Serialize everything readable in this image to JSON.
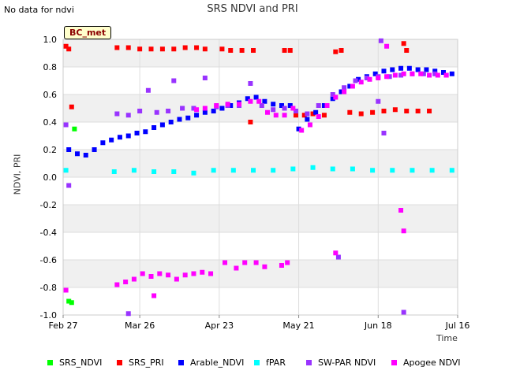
{
  "note": "No data for ndvi",
  "site_badge": "BC_met",
  "chart_data": {
    "type": "scatter",
    "title": "SRS NDVI and PRI",
    "xlabel": "Time",
    "ylabel": "NDVI, PRI",
    "ylim": [
      -1.0,
      1.0
    ],
    "y_ticks": [
      "-1.0",
      "-0.8",
      "-0.6",
      "-0.4",
      "-0.2",
      "0.0",
      "0.2",
      "0.4",
      "0.6",
      "0.8",
      "1.0"
    ],
    "x_range": [
      "2023-02-27",
      "2023-07-16"
    ],
    "x_ticks": [
      {
        "label": "Feb 27",
        "date": "2023-02-27"
      },
      {
        "label": "Mar 26",
        "date": "2023-03-26"
      },
      {
        "label": "Apr 23",
        "date": "2023-04-23"
      },
      {
        "label": "May 21",
        "date": "2023-05-21"
      },
      {
        "label": "Jun 18",
        "date": "2023-06-18"
      },
      {
        "label": "Jul 16",
        "date": "2023-07-16"
      }
    ],
    "grid": "horizontal bands",
    "legend_position": "bottom",
    "series": [
      {
        "name": "SRS_NDVI",
        "color": "#00ff00",
        "points": [
          [
            "2023-03-01",
            -0.9
          ],
          [
            "2023-03-02",
            -0.91
          ],
          [
            "2023-03-03",
            0.35
          ]
        ]
      },
      {
        "name": "SRS_PRI",
        "color": "#ff0000",
        "points": [
          [
            "2023-02-28",
            0.95
          ],
          [
            "2023-03-01",
            0.93
          ],
          [
            "2023-03-02",
            0.51
          ],
          [
            "2023-03-18",
            0.94
          ],
          [
            "2023-03-22",
            0.94
          ],
          [
            "2023-03-26",
            0.93
          ],
          [
            "2023-03-30",
            0.93
          ],
          [
            "2023-04-03",
            0.93
          ],
          [
            "2023-04-07",
            0.93
          ],
          [
            "2023-04-11",
            0.94
          ],
          [
            "2023-04-15",
            0.94
          ],
          [
            "2023-04-18",
            0.93
          ],
          [
            "2023-04-24",
            0.93
          ],
          [
            "2023-04-27",
            0.92
          ],
          [
            "2023-05-01",
            0.92
          ],
          [
            "2023-05-05",
            0.92
          ],
          [
            "2023-05-16",
            0.92
          ],
          [
            "2023-05-18",
            0.92
          ],
          [
            "2023-05-04",
            0.4
          ],
          [
            "2023-05-20",
            0.45
          ],
          [
            "2023-05-23",
            0.45
          ],
          [
            "2023-05-26",
            0.46
          ],
          [
            "2023-05-30",
            0.45
          ],
          [
            "2023-06-03",
            0.91
          ],
          [
            "2023-06-05",
            0.92
          ],
          [
            "2023-06-08",
            0.47
          ],
          [
            "2023-06-12",
            0.46
          ],
          [
            "2023-06-16",
            0.47
          ],
          [
            "2023-06-20",
            0.48
          ],
          [
            "2023-06-24",
            0.49
          ],
          [
            "2023-06-28",
            0.48
          ],
          [
            "2023-07-02",
            0.48
          ],
          [
            "2023-07-06",
            0.48
          ],
          [
            "2023-06-27",
            0.97
          ],
          [
            "2023-06-28",
            0.92
          ]
        ]
      },
      {
        "name": "Arable_NDVI",
        "color": "#0000ff",
        "points": [
          [
            "2023-03-01",
            0.2
          ],
          [
            "2023-03-04",
            0.17
          ],
          [
            "2023-03-07",
            0.16
          ],
          [
            "2023-03-10",
            0.2
          ],
          [
            "2023-03-13",
            0.25
          ],
          [
            "2023-03-16",
            0.27
          ],
          [
            "2023-03-19",
            0.29
          ],
          [
            "2023-03-22",
            0.3
          ],
          [
            "2023-03-25",
            0.32
          ],
          [
            "2023-03-28",
            0.33
          ],
          [
            "2023-03-31",
            0.36
          ],
          [
            "2023-04-03",
            0.38
          ],
          [
            "2023-04-06",
            0.4
          ],
          [
            "2023-04-09",
            0.42
          ],
          [
            "2023-04-12",
            0.43
          ],
          [
            "2023-04-15",
            0.45
          ],
          [
            "2023-04-18",
            0.47
          ],
          [
            "2023-04-21",
            0.48
          ],
          [
            "2023-04-24",
            0.5
          ],
          [
            "2023-04-27",
            0.52
          ],
          [
            "2023-04-30",
            0.54
          ],
          [
            "2023-05-03",
            0.57
          ],
          [
            "2023-05-06",
            0.58
          ],
          [
            "2023-05-09",
            0.55
          ],
          [
            "2023-05-12",
            0.53
          ],
          [
            "2023-05-15",
            0.52
          ],
          [
            "2023-05-18",
            0.52
          ],
          [
            "2023-05-21",
            0.35
          ],
          [
            "2023-05-24",
            0.42
          ],
          [
            "2023-05-27",
            0.47
          ],
          [
            "2023-05-30",
            0.52
          ],
          [
            "2023-06-02",
            0.57
          ],
          [
            "2023-06-05",
            0.62
          ],
          [
            "2023-06-08",
            0.66
          ],
          [
            "2023-06-11",
            0.71
          ],
          [
            "2023-06-14",
            0.73
          ],
          [
            "2023-06-17",
            0.75
          ],
          [
            "2023-06-20",
            0.77
          ],
          [
            "2023-06-23",
            0.78
          ],
          [
            "2023-06-26",
            0.79
          ],
          [
            "2023-06-29",
            0.79
          ],
          [
            "2023-07-02",
            0.78
          ],
          [
            "2023-07-05",
            0.78
          ],
          [
            "2023-07-08",
            0.77
          ],
          [
            "2023-07-11",
            0.76
          ],
          [
            "2023-07-14",
            0.75
          ]
        ]
      },
      {
        "name": "fPAR",
        "color": "#00ffff",
        "points": [
          [
            "2023-02-28",
            0.05
          ],
          [
            "2023-03-17",
            0.04
          ],
          [
            "2023-03-24",
            0.05
          ],
          [
            "2023-03-31",
            0.04
          ],
          [
            "2023-04-07",
            0.04
          ],
          [
            "2023-04-14",
            0.03
          ],
          [
            "2023-04-21",
            0.05
          ],
          [
            "2023-04-28",
            0.05
          ],
          [
            "2023-05-05",
            0.05
          ],
          [
            "2023-05-12",
            0.05
          ],
          [
            "2023-05-19",
            0.06
          ],
          [
            "2023-05-26",
            0.07
          ],
          [
            "2023-06-02",
            0.06
          ],
          [
            "2023-06-09",
            0.06
          ],
          [
            "2023-06-16",
            0.05
          ],
          [
            "2023-06-23",
            0.05
          ],
          [
            "2023-06-30",
            0.05
          ],
          [
            "2023-07-07",
            0.05
          ],
          [
            "2023-07-14",
            0.05
          ]
        ]
      },
      {
        "name": "SW-PAR NDVI",
        "color": "#9933ff",
        "points": [
          [
            "2023-02-28",
            0.38
          ],
          [
            "2023-03-01",
            -0.06
          ],
          [
            "2023-03-22",
            -0.99
          ],
          [
            "2023-03-18",
            0.46
          ],
          [
            "2023-03-22",
            0.45
          ],
          [
            "2023-03-26",
            0.48
          ],
          [
            "2023-03-29",
            0.63
          ],
          [
            "2023-04-01",
            0.47
          ],
          [
            "2023-04-05",
            0.48
          ],
          [
            "2023-04-07",
            0.7
          ],
          [
            "2023-04-10",
            0.5
          ],
          [
            "2023-04-14",
            0.5
          ],
          [
            "2023-04-18",
            0.72
          ],
          [
            "2023-04-22",
            0.51
          ],
          [
            "2023-04-26",
            0.52
          ],
          [
            "2023-04-30",
            0.52
          ],
          [
            "2023-05-04",
            0.68
          ],
          [
            "2023-05-08",
            0.52
          ],
          [
            "2023-05-12",
            0.49
          ],
          [
            "2023-05-16",
            0.5
          ],
          [
            "2023-05-20",
            0.48
          ],
          [
            "2023-05-24",
            0.46
          ],
          [
            "2023-05-28",
            0.52
          ],
          [
            "2023-06-02",
            0.6
          ],
          [
            "2023-06-06",
            0.65
          ],
          [
            "2023-06-10",
            0.7
          ],
          [
            "2023-06-14",
            0.72
          ],
          [
            "2023-06-18",
            0.73
          ],
          [
            "2023-06-19",
            0.99
          ],
          [
            "2023-06-20",
            0.32
          ],
          [
            "2023-06-27",
            -0.98
          ],
          [
            "2023-06-18",
            0.55
          ],
          [
            "2023-06-22",
            0.73
          ],
          [
            "2023-06-26",
            0.74
          ],
          [
            "2023-06-30",
            0.75
          ],
          [
            "2023-07-04",
            0.75
          ],
          [
            "2023-07-08",
            0.75
          ],
          [
            "2023-07-12",
            0.74
          ],
          [
            "2023-06-04",
            -0.58
          ]
        ]
      },
      {
        "name": "Apogee NDVI",
        "color": "#ff00ff",
        "points": [
          [
            "2023-02-28",
            -0.82
          ],
          [
            "2023-03-18",
            -0.78
          ],
          [
            "2023-03-21",
            -0.76
          ],
          [
            "2023-03-24",
            -0.74
          ],
          [
            "2023-03-27",
            -0.7
          ],
          [
            "2023-03-30",
            -0.72
          ],
          [
            "2023-04-02",
            -0.7
          ],
          [
            "2023-04-05",
            -0.71
          ],
          [
            "2023-04-08",
            -0.74
          ],
          [
            "2023-04-11",
            -0.71
          ],
          [
            "2023-04-14",
            -0.7
          ],
          [
            "2023-04-17",
            -0.69
          ],
          [
            "2023-03-31",
            -0.86
          ],
          [
            "2023-04-20",
            -0.7
          ],
          [
            "2023-04-25",
            -0.62
          ],
          [
            "2023-04-29",
            -0.66
          ],
          [
            "2023-05-02",
            -0.62
          ],
          [
            "2023-05-06",
            -0.62
          ],
          [
            "2023-05-09",
            -0.65
          ],
          [
            "2023-05-15",
            -0.64
          ],
          [
            "2023-05-17",
            -0.62
          ],
          [
            "2023-06-03",
            -0.55
          ],
          [
            "2023-04-15",
            0.49
          ],
          [
            "2023-04-18",
            0.5
          ],
          [
            "2023-04-22",
            0.52
          ],
          [
            "2023-04-26",
            0.53
          ],
          [
            "2023-04-30",
            0.53
          ],
          [
            "2023-05-04",
            0.55
          ],
          [
            "2023-05-07",
            0.55
          ],
          [
            "2023-05-10",
            0.47
          ],
          [
            "2023-05-13",
            0.45
          ],
          [
            "2023-05-16",
            0.45
          ],
          [
            "2023-05-19",
            0.5
          ],
          [
            "2023-05-22",
            0.34
          ],
          [
            "2023-05-25",
            0.38
          ],
          [
            "2023-05-28",
            0.44
          ],
          [
            "2023-05-31",
            0.52
          ],
          [
            "2023-06-03",
            0.58
          ],
          [
            "2023-06-06",
            0.62
          ],
          [
            "2023-06-09",
            0.66
          ],
          [
            "2023-06-12",
            0.69
          ],
          [
            "2023-06-15",
            0.71
          ],
          [
            "2023-06-18",
            0.72
          ],
          [
            "2023-06-21",
            0.73
          ],
          [
            "2023-06-24",
            0.74
          ],
          [
            "2023-06-27",
            0.75
          ],
          [
            "2023-06-30",
            0.75
          ],
          [
            "2023-07-03",
            0.75
          ],
          [
            "2023-07-06",
            0.74
          ],
          [
            "2023-07-09",
            0.74
          ],
          [
            "2023-07-12",
            0.74
          ],
          [
            "2023-06-21",
            0.95
          ],
          [
            "2023-06-26",
            -0.24
          ],
          [
            "2023-06-27",
            -0.39
          ]
        ]
      }
    ]
  }
}
